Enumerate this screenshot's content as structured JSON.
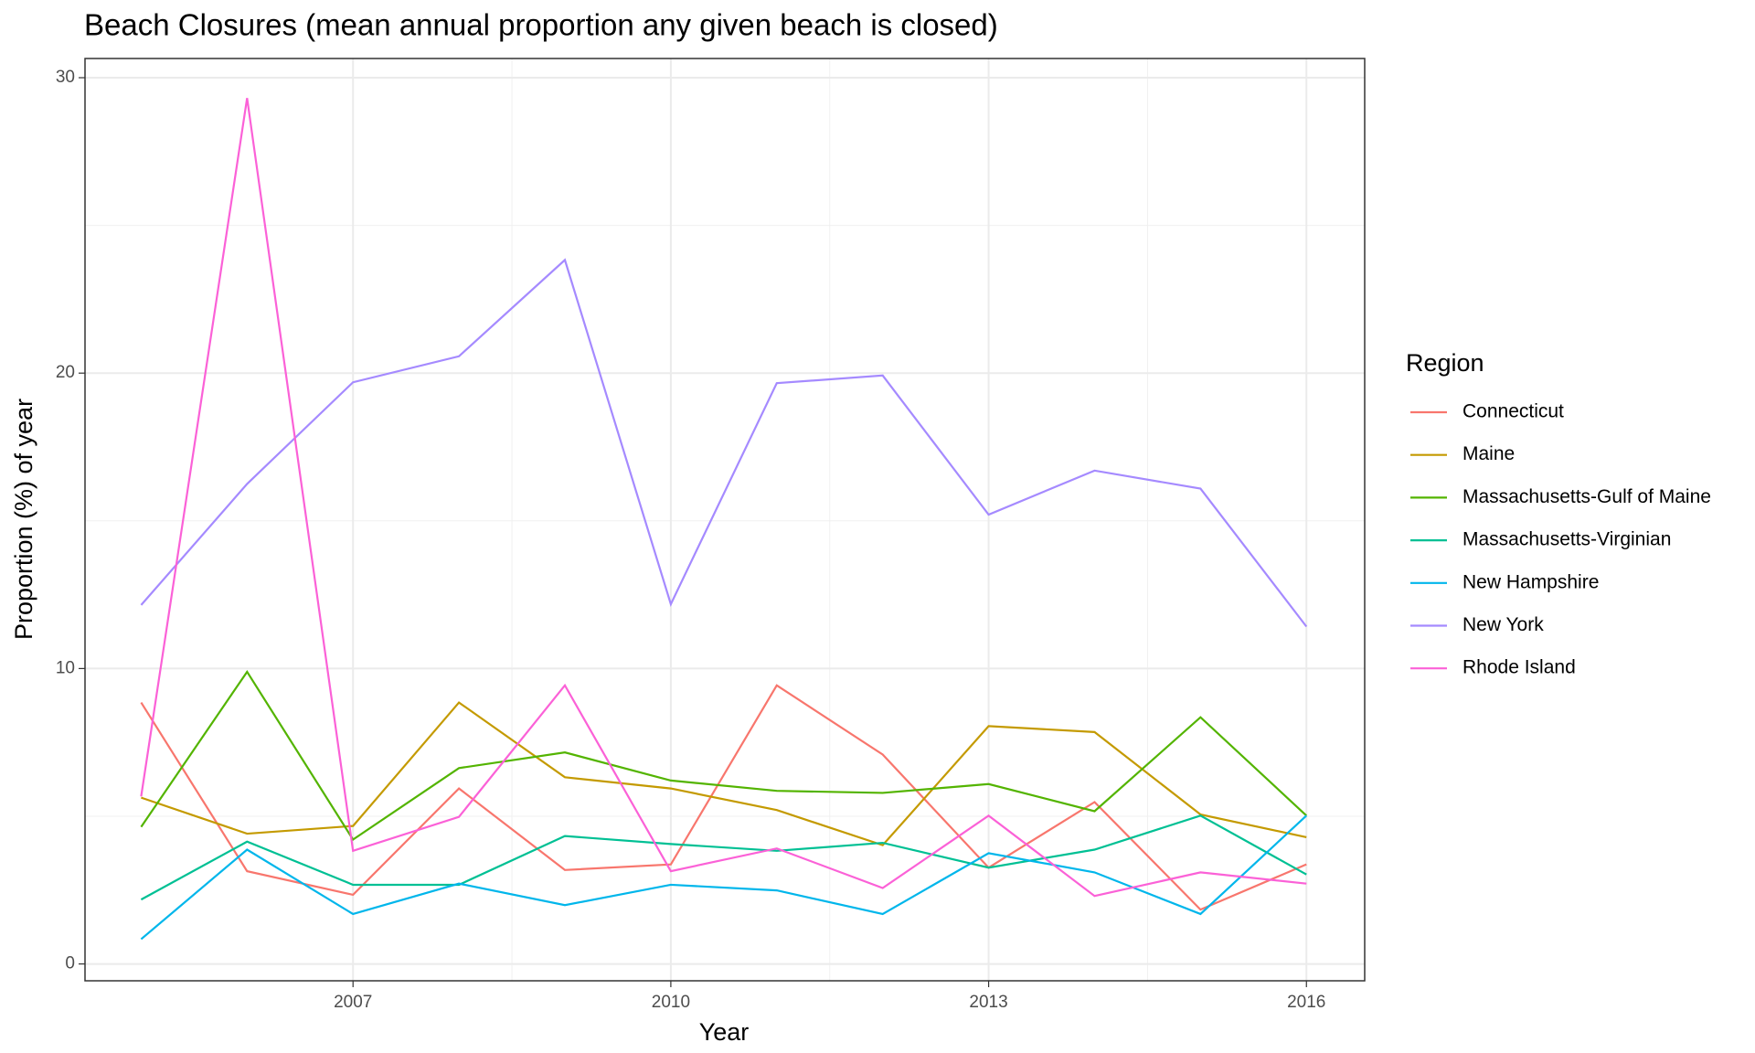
{
  "chart_data": {
    "type": "line",
    "title": "Beach Closures (mean annual proportion any given beach is closed)",
    "x_label": "Year",
    "y_label": "Proportion (%) of year",
    "legend_title": "Region",
    "legend_position": "right",
    "grid": true,
    "x": [
      2005,
      2006,
      2007,
      2008,
      2009,
      2010,
      2011,
      2012,
      2013,
      2014,
      2015,
      2016
    ],
    "xlim": [
      2004.47,
      2016.55
    ],
    "xticks": [
      2007,
      2010,
      2013,
      2016
    ],
    "ylim": [
      -0.57,
      30.65
    ],
    "yticks": [
      0,
      10,
      20,
      30
    ],
    "series": [
      {
        "name": "Connecticut",
        "color": "#F8766D",
        "values": [
          8.85,
          3.14,
          2.34,
          5.94,
          3.18,
          3.37,
          9.43,
          7.09,
          3.26,
          5.48,
          1.84,
          3.37
        ]
      },
      {
        "name": "Maine",
        "color": "#C49A00",
        "values": [
          5.63,
          4.41,
          4.67,
          8.85,
          6.32,
          5.94,
          5.21,
          4.02,
          8.05,
          7.85,
          5.06,
          4.29
        ]
      },
      {
        "name": "Massachusetts-Gulf of Maine",
        "color": "#53B400",
        "values": [
          4.64,
          9.89,
          4.21,
          6.63,
          7.16,
          6.21,
          5.86,
          5.79,
          6.09,
          5.17,
          8.35,
          5.02
        ]
      },
      {
        "name": "Massachusetts-Virginian",
        "color": "#00C094",
        "values": [
          2.18,
          4.14,
          2.68,
          2.68,
          4.33,
          4.06,
          3.83,
          4.1,
          3.26,
          3.87,
          5.02,
          3.03
        ]
      },
      {
        "name": "New Hampshire",
        "color": "#00B6EB",
        "values": [
          0.84,
          3.87,
          1.69,
          2.72,
          1.99,
          2.68,
          2.49,
          1.69,
          3.75,
          3.1,
          1.69,
          5.02
        ]
      },
      {
        "name": "New York",
        "color": "#A58AFF",
        "values": [
          12.15,
          16.25,
          19.69,
          20.57,
          23.83,
          12.18,
          19.66,
          19.92,
          15.21,
          16.7,
          16.09,
          11.42
        ]
      },
      {
        "name": "Rhode Island",
        "color": "#FB61D7",
        "values": [
          5.67,
          29.31,
          3.83,
          4.98,
          9.43,
          3.14,
          3.91,
          2.57,
          5.02,
          2.3,
          3.1,
          2.72
        ]
      }
    ]
  }
}
